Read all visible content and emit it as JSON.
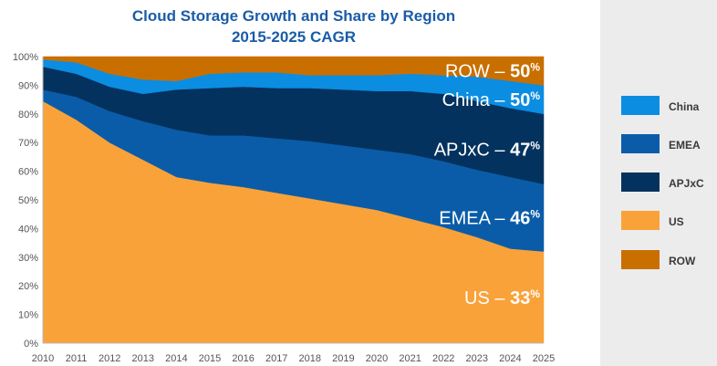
{
  "chart_data": {
    "type": "area",
    "stacked": "percent",
    "title": "Cloud Storage Growth and Share by Region",
    "subtitle": "2015-2025 CAGR",
    "xlabel": "",
    "ylabel": "",
    "ylim": [
      0,
      100
    ],
    "y_ticks": [
      "0%",
      "10%",
      "20%",
      "30%",
      "40%",
      "50%",
      "60%",
      "70%",
      "80%",
      "90%",
      "100%"
    ],
    "x": [
      2010,
      2011,
      2012,
      2013,
      2014,
      2015,
      2016,
      2017,
      2018,
      2019,
      2020,
      2021,
      2022,
      2023,
      2024,
      2025
    ],
    "series": [
      {
        "name": "US",
        "color": "#f9a23a",
        "values": [
          84.5,
          78,
          70,
          64,
          58,
          56,
          54.5,
          52.5,
          50.5,
          48.5,
          46.5,
          43.5,
          40.5,
          37,
          33,
          32
        ]
      },
      {
        "name": "EMEA",
        "color": "#0a5ca8",
        "values": [
          4,
          8,
          11,
          13.5,
          16.5,
          16.5,
          18,
          19,
          20,
          20.5,
          21,
          22.5,
          23,
          23.5,
          25,
          23.5
        ]
      },
      {
        "name": "APJxC",
        "color": "#04325e",
        "values": [
          8,
          8,
          8.5,
          9.5,
          14,
          16.5,
          17,
          17.5,
          18.5,
          19.5,
          20.5,
          22,
          23.5,
          24,
          24,
          24.5
        ]
      },
      {
        "name": "China",
        "color": "#0b8de2",
        "values": [
          2.5,
          4,
          4.5,
          5,
          3,
          5,
          5,
          5.5,
          4.5,
          5,
          5.5,
          6,
          6.5,
          8.5,
          9.5,
          10
        ]
      },
      {
        "name": "ROW",
        "color": "#c96f00",
        "values": [
          1,
          2,
          6,
          8,
          8.5,
          6,
          5.5,
          5.5,
          6.5,
          6.5,
          6.5,
          6,
          6.5,
          7,
          8.5,
          10
        ]
      }
    ],
    "annotations": [
      {
        "series": "ROW",
        "label": "ROW – ",
        "value": "50",
        "unit": "%"
      },
      {
        "series": "China",
        "label": "China – ",
        "value": "50",
        "unit": "%"
      },
      {
        "series": "APJxC",
        "label": "APJxC – ",
        "value": "47",
        "unit": "%"
      },
      {
        "series": "EMEA",
        "label": "EMEA – ",
        "value": "46",
        "unit": "%"
      },
      {
        "series": "US",
        "label": "US – ",
        "value": "33",
        "unit": "%"
      }
    ],
    "legend": {
      "placement": "right",
      "items": [
        {
          "label": "China",
          "color": "#0b8de2"
        },
        {
          "label": "EMEA",
          "color": "#0a5ca8"
        },
        {
          "label": "APJxC",
          "color": "#04325e"
        },
        {
          "label": "US",
          "color": "#f9a23a"
        },
        {
          "label": "ROW",
          "color": "#c96f00"
        }
      ]
    },
    "title_color": "#1a5ca8"
  }
}
